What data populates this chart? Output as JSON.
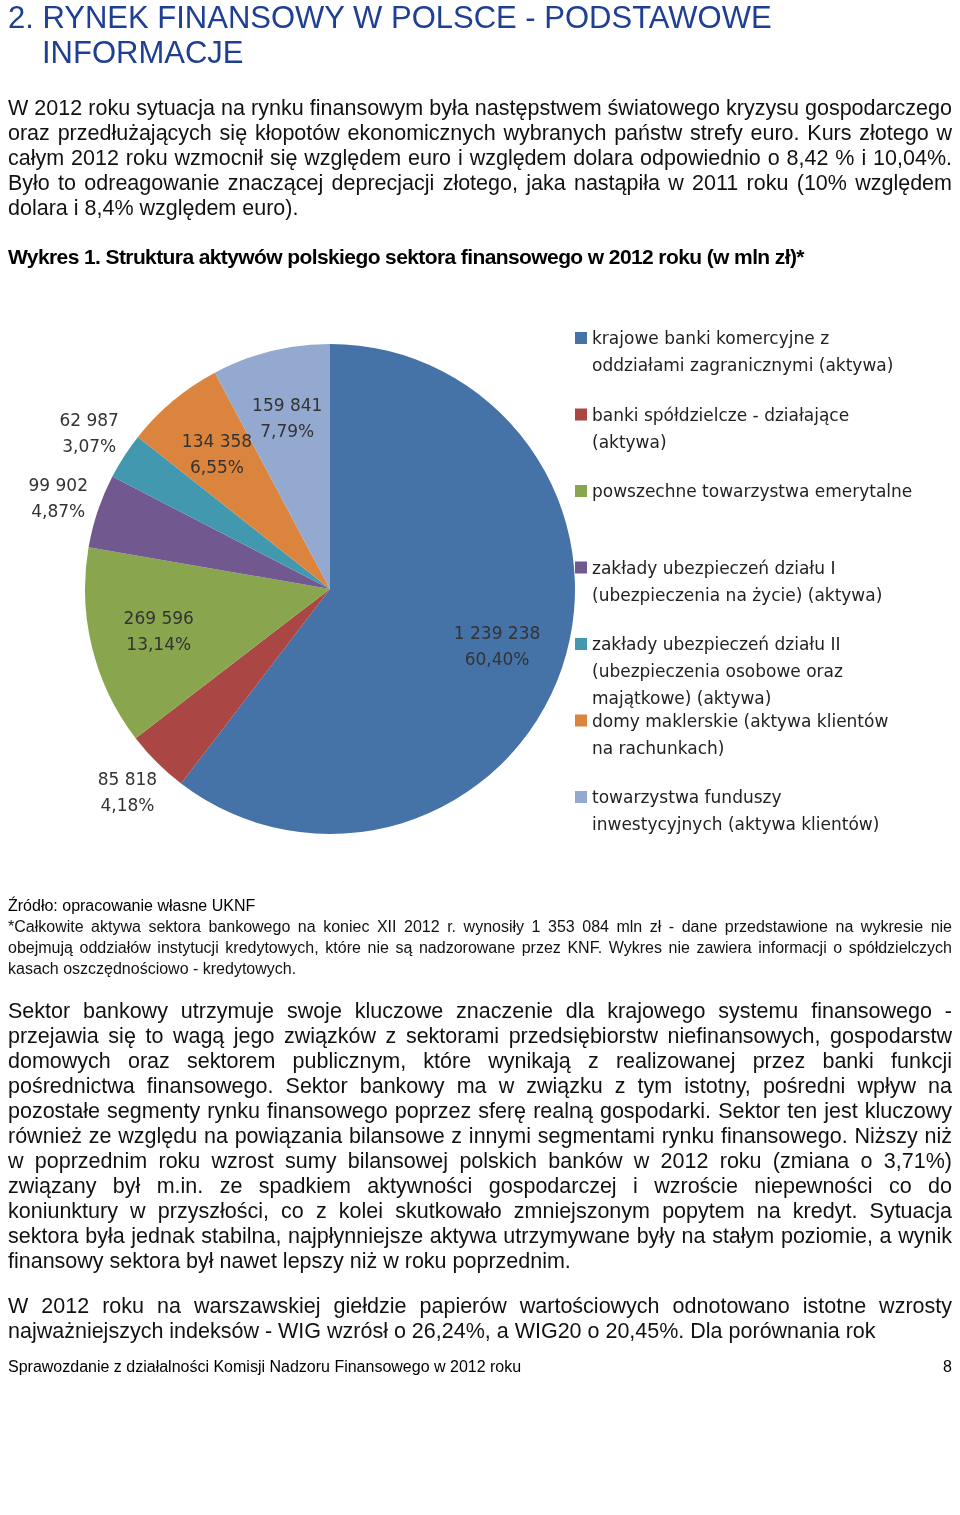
{
  "chart_data": {
    "type": "pie",
    "title": "Wykres 1. Struktura aktywów polskiego sektora finansowego w 2012 roku (w mln zł)*",
    "categories": [
      "krajowe banki komercyjne z oddziałami zagranicznymi (aktywa)",
      "banki spółdzielcze - działające (aktywa)",
      "powszechne towarzystwa emerytalne",
      "zakłady ubezpieczeń działu I (ubezpieczenia na życie) (aktywa)",
      "zakłady ubezpieczeń działu II (ubezpieczenia osobowe oraz majątkowe) (aktywa)",
      "domy maklerskie (aktywa klientów na rachunkach)",
      "towarzystwa funduszy inwestycyjnych (aktywa klientów)"
    ],
    "values": [
      1239238,
      85818,
      269596,
      99902,
      62987,
      134358,
      159841
    ],
    "value_labels": [
      "1 239 238\n60,40%",
      "85 818\n4,18%",
      "269 596\n13,14%",
      "99 902\n4,87%",
      "62 987\n3,07%",
      "134 358\n6,55%",
      "159 841\n7,79%"
    ],
    "colors": [
      "#4572a7",
      "#aa4643",
      "#89a54e",
      "#71588f",
      "#4198af",
      "#db843d",
      "#93a9cf"
    ],
    "legend": "right",
    "annotations": [
      "2. RYNEK FINANSOWY W POLSCE - PODSTAWOWE INFORMACJE",
      "W 2012 roku sytuacja na rynku finansowym była następstwem światowego kryzysu gospodarczego oraz przedłużających się kłopotów ekonomicznych wybranych państw strefy euro. Kurs złotego w całym 2012 roku wzmocnił się względem euro i względem dolara odpowiednio o 8,42 % i 10,04%. Było to odreagowanie znaczącej deprecjacji złotego, jaka nastąpiła w 2011 roku (10% względem dolara i 8,4% względem euro).",
      "Źródło: opracowanie własne UKNF",
      "*Całkowite aktywa sektora bankowego na koniec XII 2012 r. wynosiły 1 353 084 mln zł - dane przedstawione na wykresie nie obejmują oddziałów instytucji kredytowych, które nie są nadzorowane przez KNF. Wykres nie zawiera informacji o spółdzielczych kasach oszczędnościowo - kredytowych.",
      "Sektor bankowy utrzymuje swoje kluczowe znaczenie dla krajowego systemu finansowego - przejawia się to wagą jego związków z sektorami przedsiębiorstw niefinansowych, gospodarstw domowych oraz sektorem publicznym, które wynikają z realizowanej przez banki funkcji pośrednictwa finansowego. Sektor bankowy ma w związku z tym istotny, pośredni wpływ na pozostałe segmenty rynku finansowego poprzez sferę realną gospodarki. Sektor ten jest kluczowy również ze względu na powiązania bilansowe z innymi segmentami rynku finansowego. Niższy niż w poprzednim roku wzrost sumy bilansowej polskich banków w 2012 roku (zmiana o 3,71%) związany był m.in. ze spadkiem aktywności gospodarczej i wzroście niepewności co do koniunktury w przyszłości, co z kolei skutkowało zmniejszonym popytem na kredyt. Sytuacja sektora była jednak stabilna, najpłynniejsze aktywa utrzymywane były na stałym poziomie, a wynik finansowy sektora był nawet lepszy niż w roku poprzednim.",
      "W 2012 roku na warszawskiej giełdzie papierów wartościowych odnotowano istotne wzrosty najważniejszych indeksów - WIG wzrósł o 26,24%, a WIG20 o 20,45%. Dla porównania rok",
      "Sprawozdanie z działalności Komisji Nadzoru Finansowego w 2012 roku",
      "8"
    ]
  }
}
